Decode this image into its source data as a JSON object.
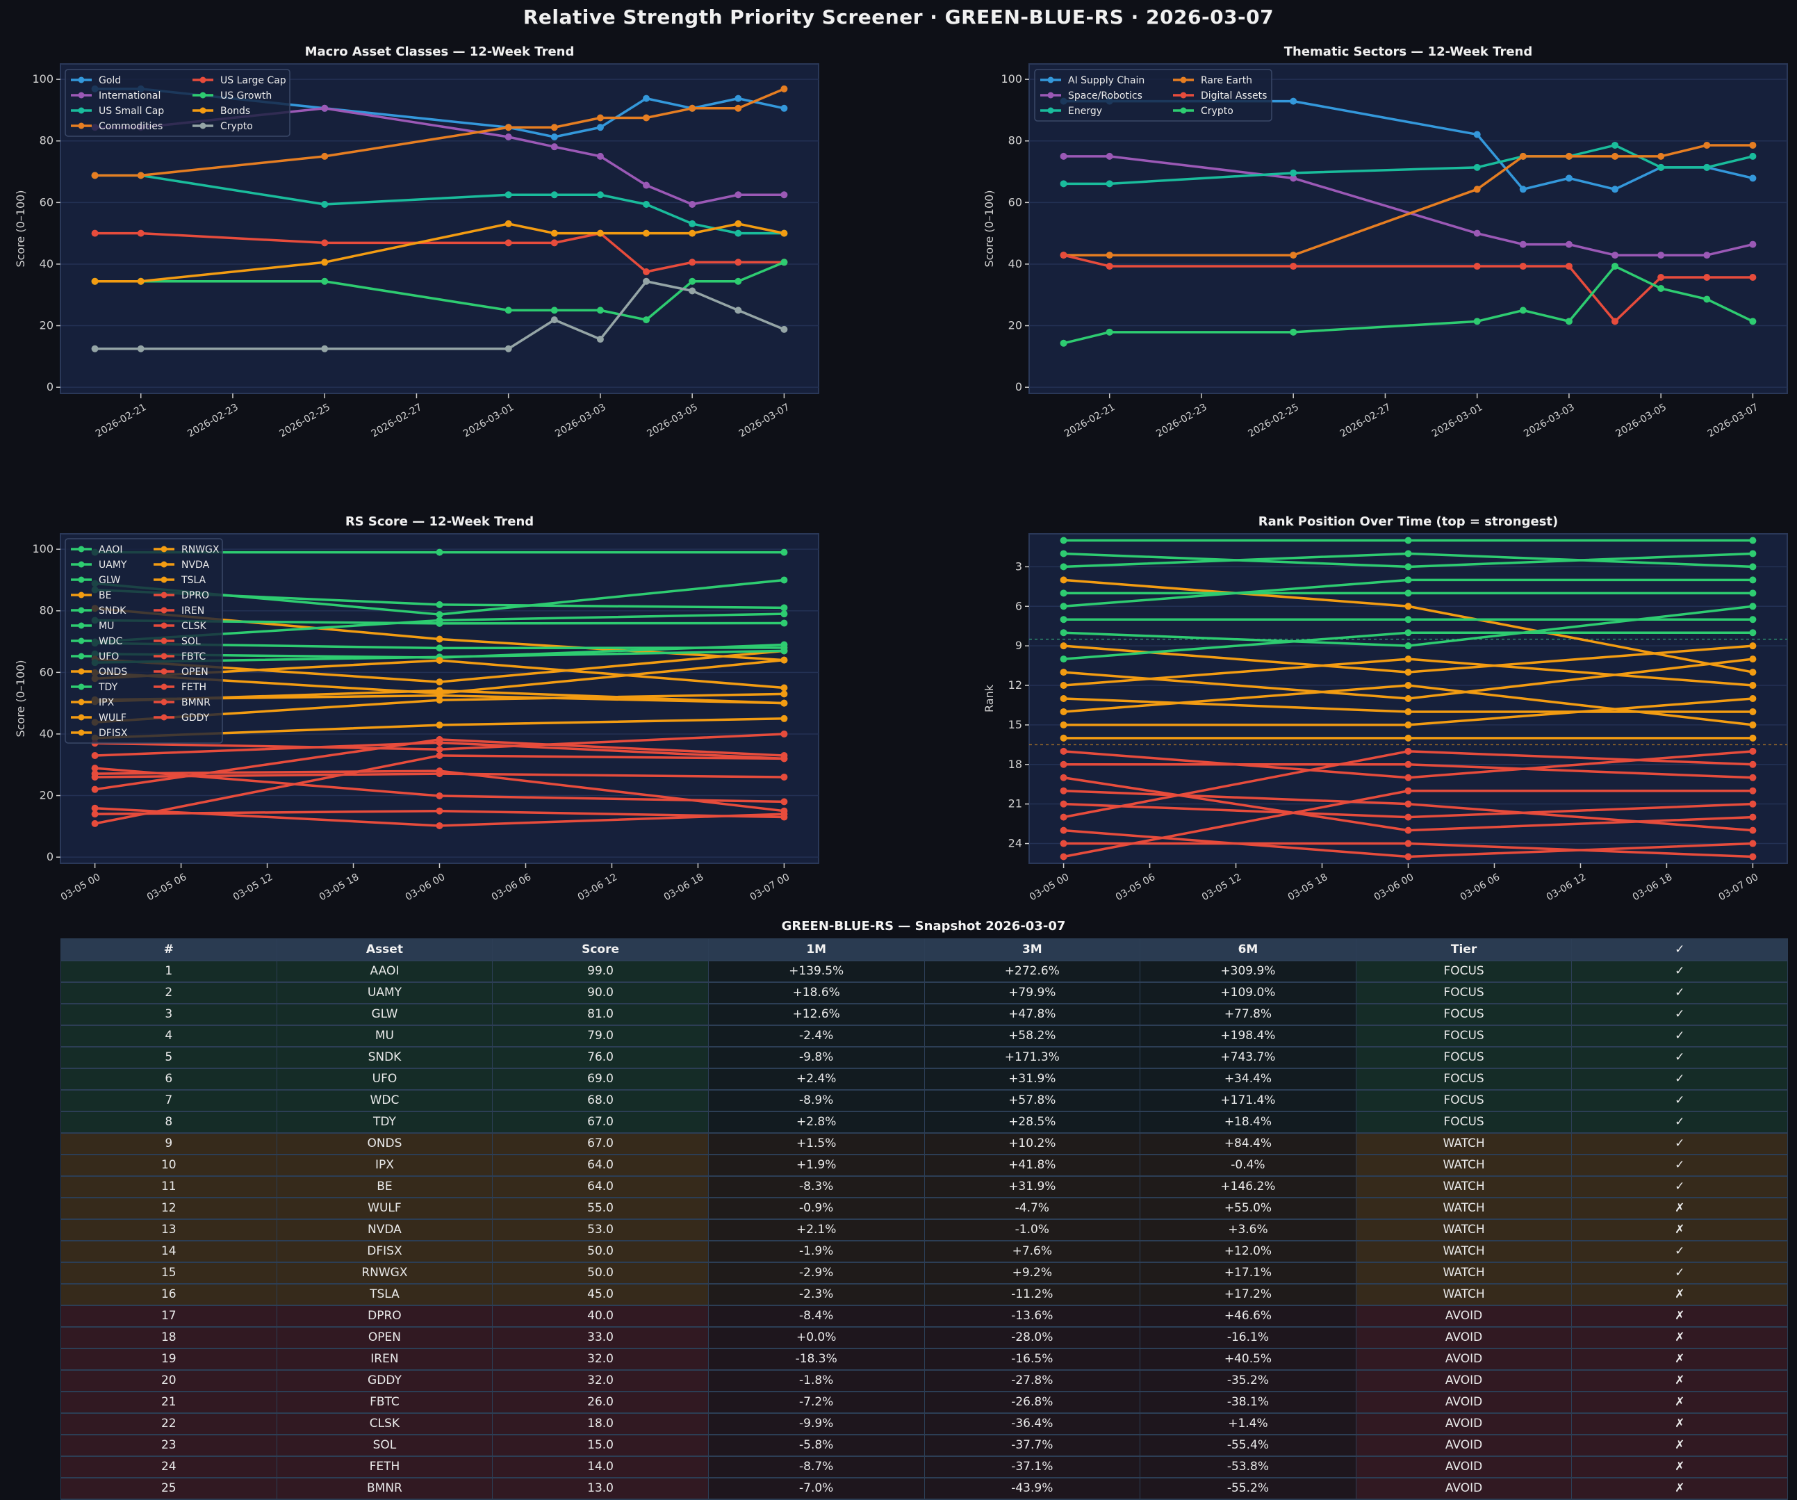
{
  "title": "Relative Strength Priority Screener  ·  GREEN-BLUE-RS  ·  2026-03-07",
  "colors": {
    "background": "#0e1017",
    "axes_background": "#16203b",
    "grid": "#233154",
    "focus": "#2ecc71",
    "watch": "#f39c12",
    "avoid": "#e74c3c"
  },
  "chart_data": [
    {
      "type": "line",
      "title": "Macro Asset Classes — 12-Week Trend",
      "xlabel": "",
      "ylabel": "Score (0–100)",
      "ylim": [
        -2,
        105
      ],
      "yticks": [
        0,
        20,
        40,
        60,
        80,
        100
      ],
      "grid": true,
      "legend": "upper-left",
      "x": [
        "2026-02-20",
        "2026-02-21",
        "2026-02-25",
        "2026-03-01",
        "2026-03-02",
        "2026-03-03",
        "2026-03-04",
        "2026-03-05",
        "2026-03-06",
        "2026-03-07"
      ],
      "xticks": [
        "2026-02-21",
        "2026-02-23",
        "2026-02-25",
        "2026-02-27",
        "2026-03-01",
        "2026-03-03",
        "2026-03-05",
        "2026-03-07"
      ],
      "xtick_labels": [
        "2026-02-21",
        "2026-02-23",
        "2026-02-25",
        "2026-02-27",
        "2026-03-01",
        "2026-03-03",
        "2026-03-05",
        "2026-03-07"
      ],
      "series": [
        {
          "name": "Gold",
          "color": "#3498db",
          "values": [
            96.9,
            96.9,
            90.6,
            84.4,
            81.3,
            84.4,
            93.8,
            90.6,
            93.8,
            90.6
          ]
        },
        {
          "name": "International",
          "color": "#9b59b6",
          "values": [
            84.4,
            84.4,
            90.6,
            81.3,
            78.1,
            75.0,
            65.6,
            59.4,
            62.5,
            62.5
          ]
        },
        {
          "name": "US Small Cap",
          "color": "#1abc9c",
          "values": [
            68.8,
            68.8,
            59.4,
            62.5,
            62.5,
            62.5,
            59.4,
            53.1,
            50.0,
            50.0
          ]
        },
        {
          "name": "Commodities",
          "color": "#e67e22",
          "values": [
            68.8,
            68.8,
            75.0,
            84.4,
            84.4,
            87.5,
            87.5,
            90.6,
            90.6,
            96.9
          ]
        },
        {
          "name": "US Large Cap",
          "color": "#e74c3c",
          "values": [
            50.0,
            50.0,
            46.9,
            46.9,
            46.9,
            50.0,
            37.5,
            40.6,
            40.6,
            40.6
          ]
        },
        {
          "name": "US Growth",
          "color": "#2ecc71",
          "values": [
            34.4,
            34.4,
            34.4,
            25.0,
            25.0,
            25.0,
            21.9,
            34.4,
            34.4,
            40.6
          ]
        },
        {
          "name": "Bonds",
          "color": "#f39c12",
          "values": [
            34.4,
            34.4,
            40.6,
            53.1,
            50.0,
            50.0,
            50.0,
            50.0,
            53.1,
            50.0
          ]
        },
        {
          "name": "Crypto",
          "color": "#95a5a6",
          "values": [
            12.5,
            12.5,
            12.5,
            12.5,
            21.9,
            15.6,
            34.4,
            31.3,
            25.0,
            18.8
          ]
        }
      ]
    },
    {
      "type": "line",
      "title": "Thematic Sectors — 12-Week Trend",
      "xlabel": "",
      "ylabel": "Score (0–100)",
      "ylim": [
        -2,
        105
      ],
      "yticks": [
        0,
        20,
        40,
        60,
        80,
        100
      ],
      "grid": true,
      "legend": "upper-left",
      "x": [
        "2026-02-20",
        "2026-02-21",
        "2026-02-25",
        "2026-03-01",
        "2026-03-02",
        "2026-03-03",
        "2026-03-04",
        "2026-03-05",
        "2026-03-06",
        "2026-03-07"
      ],
      "xticks": [
        "2026-02-21",
        "2026-02-23",
        "2026-02-25",
        "2026-02-27",
        "2026-03-01",
        "2026-03-03",
        "2026-03-05",
        "2026-03-07"
      ],
      "xtick_labels": [
        "2026-02-21",
        "2026-02-23",
        "2026-02-25",
        "2026-02-27",
        "2026-03-01",
        "2026-03-03",
        "2026-03-05",
        "2026-03-07"
      ],
      "series": [
        {
          "name": "AI Supply Chain",
          "color": "#3498db",
          "values": [
            92.9,
            92.9,
            92.9,
            82.1,
            64.3,
            67.9,
            64.3,
            71.4,
            71.4,
            67.9
          ]
        },
        {
          "name": "Space/Robotics",
          "color": "#9b59b6",
          "values": [
            75.0,
            75.0,
            67.9,
            50.0,
            46.4,
            46.4,
            42.9,
            42.9,
            42.9,
            46.4
          ]
        },
        {
          "name": "Energy",
          "color": "#1abc9c",
          "values": [
            66.1,
            66.1,
            69.6,
            71.4,
            75.0,
            75.0,
            78.6,
            71.4,
            71.4,
            75.0
          ]
        },
        {
          "name": "Rare Earth",
          "color": "#e67e22",
          "values": [
            42.9,
            42.9,
            42.9,
            64.3,
            75.0,
            75.0,
            75.0,
            75.0,
            78.6,
            78.6
          ]
        },
        {
          "name": "Digital Assets",
          "color": "#e74c3c",
          "values": [
            42.9,
            39.3,
            39.3,
            39.3,
            39.3,
            39.3,
            21.4,
            35.7,
            35.7,
            35.7
          ]
        },
        {
          "name": "Crypto",
          "color": "#2ecc71",
          "values": [
            14.3,
            17.9,
            17.9,
            21.4,
            25.0,
            21.4,
            39.3,
            32.1,
            28.6,
            21.4
          ]
        }
      ]
    },
    {
      "type": "line",
      "title": "RS Score — 12-Week Trend",
      "xlabel": "",
      "ylabel": "Score (0–100)",
      "ylim": [
        -2,
        105
      ],
      "yticks": [
        0,
        20,
        40,
        60,
        80,
        100
      ],
      "grid": true,
      "legend": "upper-left",
      "x": [
        "2026-03-05 00:00",
        "2026-03-06 00:00",
        "2026-03-07 00:00"
      ],
      "xticks": [
        "2026-03-05 00:00",
        "2026-03-05 06:00",
        "2026-03-05 12:00",
        "2026-03-05 18:00",
        "2026-03-06 00:00",
        "2026-03-06 06:00",
        "2026-03-06 12:00",
        "2026-03-06 18:00",
        "2026-03-07 00:00"
      ],
      "xtick_labels": [
        "03-05 00",
        "03-05 06",
        "03-05 12",
        "03-05 18",
        "03-06 00",
        "03-06 06",
        "03-06 12",
        "03-06 18",
        "03-07 00"
      ],
      "series": [
        {
          "name": "AAOI",
          "color": "#2ecc71",
          "values": [
            99,
            99,
            99
          ]
        },
        {
          "name": "UAMY",
          "color": "#2ecc71",
          "values": [
            88.9,
            78.8,
            90
          ]
        },
        {
          "name": "GLW",
          "color": "#2ecc71",
          "values": [
            86.8,
            82,
            81
          ]
        },
        {
          "name": "BE",
          "color": "#f39c12",
          "values": [
            80.8,
            70.8,
            64
          ]
        },
        {
          "name": "SNDK",
          "color": "#2ecc71",
          "values": [
            76.9,
            75.9,
            76
          ]
        },
        {
          "name": "MU",
          "color": "#2ecc71",
          "values": [
            69.9,
            76.9,
            79
          ]
        },
        {
          "name": "WDC",
          "color": "#2ecc71",
          "values": [
            69.5,
            67.9,
            68
          ]
        },
        {
          "name": "UFO",
          "color": "#2ecc71",
          "values": [
            66,
            64.8,
            69
          ]
        },
        {
          "name": "ONDS",
          "color": "#f39c12",
          "values": [
            64.3,
            56.9,
            67
          ]
        },
        {
          "name": "TDY",
          "color": "#2ecc71",
          "values": [
            63.2,
            65,
            67
          ]
        },
        {
          "name": "IPX",
          "color": "#f39c12",
          "values": [
            59.9,
            53.2,
            64
          ]
        },
        {
          "name": "WULF",
          "color": "#f39c12",
          "values": [
            58,
            63.9,
            55
          ]
        },
        {
          "name": "DFISX",
          "color": "#f39c12",
          "values": [
            51.1,
            52.5,
            50
          ]
        },
        {
          "name": "RNWGX",
          "color": "#f39c12",
          "values": [
            50.5,
            54.1,
            50
          ]
        },
        {
          "name": "NVDA",
          "color": "#f39c12",
          "values": [
            43.8,
            51,
            53
          ]
        },
        {
          "name": "TSLA",
          "color": "#f39c12",
          "values": [
            38.7,
            42.9,
            45
          ]
        },
        {
          "name": "DPRO",
          "color": "#e74c3c",
          "values": [
            37,
            35,
            40
          ]
        },
        {
          "name": "IREN",
          "color": "#e74c3c",
          "values": [
            33,
            37.2,
            32
          ]
        },
        {
          "name": "CLSK",
          "color": "#e74c3c",
          "values": [
            28.9,
            19.9,
            18
          ]
        },
        {
          "name": "SOL",
          "color": "#e74c3c",
          "values": [
            27.1,
            28,
            15
          ]
        },
        {
          "name": "FBTC",
          "color": "#e74c3c",
          "values": [
            26,
            27.1,
            26
          ]
        },
        {
          "name": "OPEN",
          "color": "#e74c3c",
          "values": [
            22,
            38.2,
            33
          ]
        },
        {
          "name": "FETH",
          "color": "#e74c3c",
          "values": [
            15.9,
            10.2,
            14
          ]
        },
        {
          "name": "BMNR",
          "color": "#e74c3c",
          "values": [
            14,
            15,
            13
          ]
        },
        {
          "name": "GDDY",
          "color": "#e74c3c",
          "values": [
            10.9,
            33,
            32
          ]
        }
      ]
    },
    {
      "type": "line",
      "title": "Rank Position Over Time  (top = strongest)",
      "xlabel": "",
      "ylabel": "Rank",
      "ylim": [
        25.5,
        0.5
      ],
      "y_inverted": true,
      "yticks": [
        3,
        6,
        9,
        12,
        15,
        18,
        21,
        24
      ],
      "tier_boundaries": [
        8.5,
        16.5
      ],
      "grid": true,
      "x": [
        "2026-03-05 00:00",
        "2026-03-06 00:00",
        "2026-03-07 00:00"
      ],
      "xticks": [
        "2026-03-05 00:00",
        "2026-03-05 06:00",
        "2026-03-05 12:00",
        "2026-03-05 18:00",
        "2026-03-06 00:00",
        "2026-03-06 06:00",
        "2026-03-06 12:00",
        "2026-03-06 18:00",
        "2026-03-07 00:00"
      ],
      "xtick_labels": [
        "03-05 00",
        "03-05 06",
        "03-05 12",
        "03-05 18",
        "03-06 00",
        "03-06 06",
        "03-06 12",
        "03-06 18",
        "03-07 00"
      ],
      "series": [
        {
          "color": "#2ecc71",
          "values": [
            1,
            1,
            1
          ]
        },
        {
          "color": "#2ecc71",
          "values": [
            2,
            3,
            2
          ]
        },
        {
          "color": "#2ecc71",
          "values": [
            3,
            2,
            3
          ]
        },
        {
          "color": "#f39c12",
          "values": [
            4,
            6,
            11
          ]
        },
        {
          "color": "#2ecc71",
          "values": [
            5,
            5,
            5
          ]
        },
        {
          "color": "#2ecc71",
          "values": [
            6,
            4,
            4
          ]
        },
        {
          "color": "#2ecc71",
          "values": [
            7,
            7,
            7
          ]
        },
        {
          "color": "#2ecc71",
          "values": [
            8,
            9,
            6
          ]
        },
        {
          "color": "#f39c12",
          "values": [
            9,
            11,
            9
          ]
        },
        {
          "color": "#2ecc71",
          "values": [
            10,
            8,
            8
          ]
        },
        {
          "color": "#f39c12",
          "values": [
            11,
            13,
            10
          ]
        },
        {
          "color": "#f39c12",
          "values": [
            12,
            10,
            12
          ]
        },
        {
          "color": "#f39c12",
          "values": [
            13,
            14,
            14
          ]
        },
        {
          "color": "#f39c12",
          "values": [
            14,
            12,
            15
          ]
        },
        {
          "color": "#f39c12",
          "values": [
            15,
            15,
            13
          ]
        },
        {
          "color": "#f39c12",
          "values": [
            16,
            16,
            16
          ]
        },
        {
          "color": "#e74c3c",
          "values": [
            17,
            19,
            17
          ]
        },
        {
          "color": "#e74c3c",
          "values": [
            18,
            18,
            19
          ]
        },
        {
          "color": "#e74c3c",
          "values": [
            19,
            23,
            22
          ]
        },
        {
          "color": "#e74c3c",
          "values": [
            20,
            21,
            23
          ]
        },
        {
          "color": "#e74c3c",
          "values": [
            21,
            22,
            21
          ]
        },
        {
          "color": "#e74c3c",
          "values": [
            22,
            17,
            18
          ]
        },
        {
          "color": "#e74c3c",
          "values": [
            23,
            25,
            24
          ]
        },
        {
          "color": "#e74c3c",
          "values": [
            24,
            24,
            25
          ]
        },
        {
          "color": "#e74c3c",
          "values": [
            25,
            20,
            20
          ]
        }
      ]
    }
  ],
  "table": {
    "title": "GREEN-BLUE-RS — Snapshot 2026-03-07",
    "columns": [
      "#",
      "Asset",
      "Score",
      "1M",
      "3M",
      "6M",
      "Tier",
      "✓"
    ],
    "tier_colors": {
      "FOCUS": {
        "tier": "#152c27",
        "returns": "#121b20"
      },
      "WATCH": {
        "tier": "#362a1b",
        "returns": "#1f1b1a"
      },
      "AVOID": {
        "tier": "#311922",
        "returns": "#1e161d"
      }
    },
    "rows": [
      [
        "1",
        "AAOI",
        "99.0",
        "+139.5%",
        "+272.6%",
        "+309.9%",
        "FOCUS",
        "✓"
      ],
      [
        "2",
        "UAMY",
        "90.0",
        "+18.6%",
        "+79.9%",
        "+109.0%",
        "FOCUS",
        "✓"
      ],
      [
        "3",
        "GLW",
        "81.0",
        "+12.6%",
        "+47.8%",
        "+77.8%",
        "FOCUS",
        "✓"
      ],
      [
        "4",
        "MU",
        "79.0",
        "-2.4%",
        "+58.2%",
        "+198.4%",
        "FOCUS",
        "✓"
      ],
      [
        "5",
        "SNDK",
        "76.0",
        "-9.8%",
        "+171.3%",
        "+743.7%",
        "FOCUS",
        "✓"
      ],
      [
        "6",
        "UFO",
        "69.0",
        "+2.4%",
        "+31.9%",
        "+34.4%",
        "FOCUS",
        "✓"
      ],
      [
        "7",
        "WDC",
        "68.0",
        "-8.9%",
        "+57.8%",
        "+171.4%",
        "FOCUS",
        "✓"
      ],
      [
        "8",
        "TDY",
        "67.0",
        "+2.8%",
        "+28.5%",
        "+18.4%",
        "FOCUS",
        "✓"
      ],
      [
        "9",
        "ONDS",
        "67.0",
        "+1.5%",
        "+10.2%",
        "+84.4%",
        "WATCH",
        "✓"
      ],
      [
        "10",
        "IPX",
        "64.0",
        "+1.9%",
        "+41.8%",
        "-0.4%",
        "WATCH",
        "✓"
      ],
      [
        "11",
        "BE",
        "64.0",
        "-8.3%",
        "+31.9%",
        "+146.2%",
        "WATCH",
        "✓"
      ],
      [
        "12",
        "WULF",
        "55.0",
        "-0.9%",
        "-4.7%",
        "+55.0%",
        "WATCH",
        "✗"
      ],
      [
        "13",
        "NVDA",
        "53.0",
        "+2.1%",
        "-1.0%",
        "+3.6%",
        "WATCH",
        "✗"
      ],
      [
        "14",
        "DFISX",
        "50.0",
        "-1.9%",
        "+7.6%",
        "+12.0%",
        "WATCH",
        "✓"
      ],
      [
        "15",
        "RNWGX",
        "50.0",
        "-2.9%",
        "+9.2%",
        "+17.1%",
        "WATCH",
        "✓"
      ],
      [
        "16",
        "TSLA",
        "45.0",
        "-2.3%",
        "-11.2%",
        "+17.2%",
        "WATCH",
        "✗"
      ],
      [
        "17",
        "DPRO",
        "40.0",
        "-8.4%",
        "-13.6%",
        "+46.6%",
        "AVOID",
        "✗"
      ],
      [
        "18",
        "OPEN",
        "33.0",
        "+0.0%",
        "-28.0%",
        "-16.1%",
        "AVOID",
        "✗"
      ],
      [
        "19",
        "IREN",
        "32.0",
        "-18.3%",
        "-16.5%",
        "+40.5%",
        "AVOID",
        "✗"
      ],
      [
        "20",
        "GDDY",
        "32.0",
        "-1.8%",
        "-27.8%",
        "-35.2%",
        "AVOID",
        "✗"
      ],
      [
        "21",
        "FBTC",
        "26.0",
        "-7.2%",
        "-26.8%",
        "-38.1%",
        "AVOID",
        "✗"
      ],
      [
        "22",
        "CLSK",
        "18.0",
        "-9.9%",
        "-36.4%",
        "+1.4%",
        "AVOID",
        "✗"
      ],
      [
        "23",
        "SOL",
        "15.0",
        "-5.8%",
        "-37.7%",
        "-55.4%",
        "AVOID",
        "✗"
      ],
      [
        "24",
        "FETH",
        "14.0",
        "-8.7%",
        "-37.1%",
        "-53.8%",
        "AVOID",
        "✗"
      ],
      [
        "25",
        "BMNR",
        "13.0",
        "-7.0%",
        "-43.9%",
        "-55.2%",
        "AVOID",
        "✗"
      ]
    ]
  }
}
